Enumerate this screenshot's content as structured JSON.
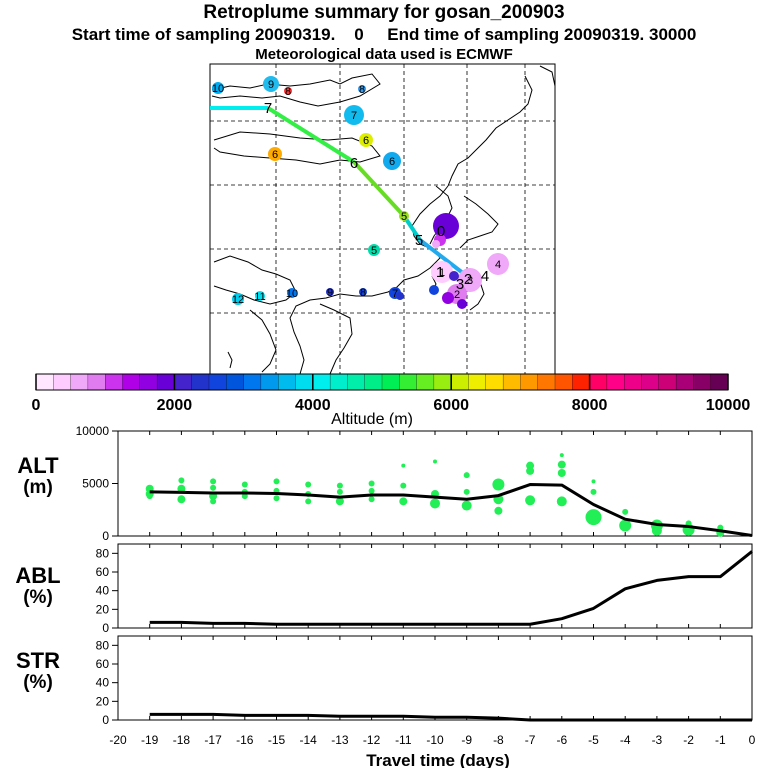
{
  "title": "Retroplume summary for gosan_200903",
  "subtitle": "Start time of sampling 20090319.    0     End time of sampling 20090319. 30000",
  "met_line": "Meteorological data used is ECMWF",
  "colorbar": {
    "label": "Altitude  (m)",
    "ticks": [
      "0",
      "2000",
      "4000",
      "6000",
      "8000",
      "10000"
    ],
    "colors": [
      "#ffe8ff",
      "#ffccff",
      "#f0a8f8",
      "#e07cf0",
      "#cc33ee",
      "#b000e8",
      "#9000e0",
      "#6a00d8",
      "#4422cc",
      "#2233cc",
      "#1144dd",
      "#0055dd",
      "#0077ee",
      "#0099ee",
      "#00bbee",
      "#00ddee",
      "#00eeee",
      "#00eecc",
      "#00eeaa",
      "#00ee88",
      "#00ee55",
      "#33ee33",
      "#66ee22",
      "#99ee11",
      "#ccee00",
      "#eeee00",
      "#ffdd00",
      "#ffbb00",
      "#ff9900",
      "#ff7700",
      "#ff5500",
      "#ff2200",
      "#ff0066",
      "#ff0088",
      "#ee0088",
      "#dd0088",
      "#cc0077",
      "#aa0077",
      "#880066",
      "#660055"
    ]
  },
  "map": {
    "trajectory_labels": [
      "7",
      "6",
      "5",
      "4",
      "3",
      "2",
      "1",
      "0"
    ],
    "plume_labels": [
      "10",
      "9",
      "8",
      "8",
      "7",
      "6",
      "6",
      "6",
      "5",
      "5",
      "4",
      "3",
      "2",
      "1",
      "12",
      "11",
      "10",
      "9",
      "8",
      "7"
    ]
  },
  "chart_data": [
    {
      "type": "scatter",
      "name": "ALT",
      "ylabel_line1": "ALT",
      "ylabel_line2": "(m)",
      "ylim": [
        0,
        10000
      ],
      "yticks": [
        0,
        5000,
        10000
      ],
      "x": [
        -19,
        -18,
        -17,
        -16,
        -15,
        -14,
        -13,
        -12,
        -11,
        -10,
        -9,
        -8,
        -7,
        -6,
        -5,
        -4,
        -3,
        -2,
        -1,
        0
      ],
      "median_line": [
        4200,
        4150,
        4100,
        4100,
        4050,
        3900,
        3700,
        3900,
        3900,
        3700,
        3500,
        3850,
        4900,
        4850,
        3000,
        1600,
        1100,
        900,
        500,
        50
      ],
      "points": [
        {
          "x": -19,
          "y": 4500,
          "r": 4
        },
        {
          "x": -19,
          "y": 4000,
          "r": 4
        },
        {
          "x": -19,
          "y": 3800,
          "r": 3
        },
        {
          "x": -18,
          "y": 5300,
          "r": 3
        },
        {
          "x": -18,
          "y": 4500,
          "r": 4
        },
        {
          "x": -18,
          "y": 3500,
          "r": 4
        },
        {
          "x": -17,
          "y": 5200,
          "r": 3
        },
        {
          "x": -17,
          "y": 4600,
          "r": 3
        },
        {
          "x": -17,
          "y": 3800,
          "r": 4
        },
        {
          "x": -17,
          "y": 3300,
          "r": 3
        },
        {
          "x": -16,
          "y": 4900,
          "r": 3
        },
        {
          "x": -16,
          "y": 4200,
          "r": 3
        },
        {
          "x": -16,
          "y": 3800,
          "r": 3
        },
        {
          "x": -15,
          "y": 5200,
          "r": 3
        },
        {
          "x": -15,
          "y": 4300,
          "r": 3
        },
        {
          "x": -15,
          "y": 3600,
          "r": 3
        },
        {
          "x": -14,
          "y": 4900,
          "r": 3
        },
        {
          "x": -14,
          "y": 4000,
          "r": 3
        },
        {
          "x": -14,
          "y": 3300,
          "r": 3
        },
        {
          "x": -13,
          "y": 4800,
          "r": 3
        },
        {
          "x": -13,
          "y": 4200,
          "r": 3
        },
        {
          "x": -13,
          "y": 3300,
          "r": 4
        },
        {
          "x": -12,
          "y": 5000,
          "r": 3
        },
        {
          "x": -12,
          "y": 4300,
          "r": 3
        },
        {
          "x": -12,
          "y": 3500,
          "r": 3
        },
        {
          "x": -11,
          "y": 6700,
          "r": 2
        },
        {
          "x": -11,
          "y": 4800,
          "r": 3
        },
        {
          "x": -11,
          "y": 3300,
          "r": 4
        },
        {
          "x": -10,
          "y": 7100,
          "r": 2
        },
        {
          "x": -10,
          "y": 4000,
          "r": 4
        },
        {
          "x": -10,
          "y": 3100,
          "r": 5
        },
        {
          "x": -9,
          "y": 5800,
          "r": 3
        },
        {
          "x": -9,
          "y": 4200,
          "r": 3
        },
        {
          "x": -9,
          "y": 2900,
          "r": 5
        },
        {
          "x": -8,
          "y": 4900,
          "r": 6
        },
        {
          "x": -8,
          "y": 3500,
          "r": 5
        },
        {
          "x": -8,
          "y": 2400,
          "r": 4
        },
        {
          "x": -7,
          "y": 6700,
          "r": 4
        },
        {
          "x": -7,
          "y": 6200,
          "r": 4
        },
        {
          "x": -7,
          "y": 3400,
          "r": 5
        },
        {
          "x": -6,
          "y": 7700,
          "r": 2
        },
        {
          "x": -6,
          "y": 6800,
          "r": 4
        },
        {
          "x": -6,
          "y": 6000,
          "r": 4
        },
        {
          "x": -6,
          "y": 3300,
          "r": 5
        },
        {
          "x": -5,
          "y": 5200,
          "r": 2
        },
        {
          "x": -5,
          "y": 4200,
          "r": 3
        },
        {
          "x": -5,
          "y": 1800,
          "r": 8
        },
        {
          "x": -4,
          "y": 2300,
          "r": 3
        },
        {
          "x": -4,
          "y": 1000,
          "r": 6
        },
        {
          "x": -3,
          "y": 1000,
          "r": 6
        },
        {
          "x": -3,
          "y": 500,
          "r": 5
        },
        {
          "x": -2,
          "y": 1200,
          "r": 3
        },
        {
          "x": -2,
          "y": 600,
          "r": 6
        },
        {
          "x": -1,
          "y": 800,
          "r": 3
        },
        {
          "x": -1,
          "y": 300,
          "r": 4
        }
      ]
    },
    {
      "type": "line",
      "name": "ABL",
      "ylabel_line1": "ABL",
      "ylabel_line2": "(%)",
      "ylim": [
        0,
        90
      ],
      "yticks": [
        0,
        20,
        40,
        60,
        80
      ],
      "x": [
        -19,
        -18,
        -17,
        -16,
        -15,
        -14,
        -13,
        -12,
        -11,
        -10,
        -9,
        -8,
        -7,
        -6,
        -5,
        -4,
        -3,
        -2,
        -1,
        0
      ],
      "values": [
        6,
        6,
        5,
        5,
        4,
        4,
        4,
        4,
        4,
        4,
        4,
        4,
        4,
        10,
        21,
        42,
        51,
        55,
        55,
        82
      ]
    },
    {
      "type": "line",
      "name": "STR",
      "ylabel_line1": "STR",
      "ylabel_line2": "(%)",
      "ylim": [
        0,
        90
      ],
      "yticks": [
        0,
        20,
        40,
        60,
        80
      ],
      "x": [
        -19,
        -18,
        -17,
        -16,
        -15,
        -14,
        -13,
        -12,
        -11,
        -10,
        -9,
        -8,
        -7,
        -6,
        -5,
        -4,
        -3,
        -2,
        -1,
        0
      ],
      "values": [
        6,
        6,
        6,
        5,
        5,
        5,
        4,
        4,
        4,
        3,
        3,
        2,
        0,
        0,
        0,
        0,
        0,
        0,
        0,
        0
      ],
      "xlabel": "Travel time (days)",
      "xlim": [
        -20,
        0
      ],
      "xticks": [
        -20,
        -19,
        -18,
        -17,
        -16,
        -15,
        -14,
        -13,
        -12,
        -11,
        -10,
        -9,
        -8,
        -7,
        -6,
        -5,
        -4,
        -3,
        -2,
        -1,
        0
      ]
    }
  ]
}
